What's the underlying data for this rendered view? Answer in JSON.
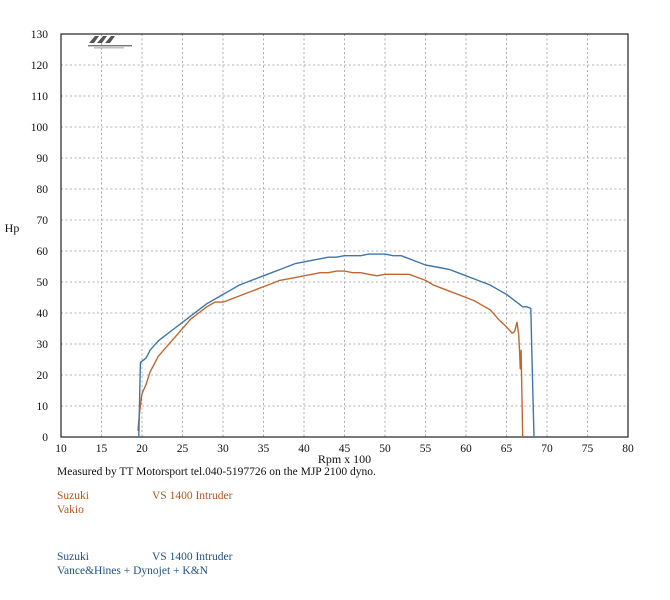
{
  "chart_data": {
    "type": "line",
    "xlabel": "Rpm x 100",
    "ylabel": "Hp",
    "xlim": [
      10,
      80
    ],
    "ylim": [
      0,
      130
    ],
    "x_ticks": [
      10,
      15,
      20,
      25,
      30,
      35,
      40,
      45,
      50,
      55,
      60,
      65,
      70,
      75,
      80
    ],
    "y_ticks": [
      0,
      10,
      20,
      30,
      40,
      50,
      60,
      70,
      80,
      90,
      100,
      110,
      120,
      130
    ],
    "grid": true,
    "series": [
      {
        "name": "Vakio",
        "color": "#c0672f",
        "points": [
          [
            19.5,
            2
          ],
          [
            19.7,
            8
          ],
          [
            20,
            14
          ],
          [
            20.5,
            17
          ],
          [
            21,
            21
          ],
          [
            22,
            26
          ],
          [
            23,
            29
          ],
          [
            24,
            32
          ],
          [
            25,
            35
          ],
          [
            26,
            38
          ],
          [
            27,
            40
          ],
          [
            28,
            42
          ],
          [
            29,
            43.5
          ],
          [
            30,
            43.5
          ],
          [
            31,
            44.5
          ],
          [
            32,
            45.5
          ],
          [
            33,
            46.5
          ],
          [
            34,
            47.5
          ],
          [
            35,
            48.5
          ],
          [
            36,
            49.5
          ],
          [
            37,
            50.5
          ],
          [
            38,
            51
          ],
          [
            39,
            51.5
          ],
          [
            40,
            52
          ],
          [
            41,
            52.5
          ],
          [
            42,
            53
          ],
          [
            43,
            53
          ],
          [
            44,
            53.5
          ],
          [
            45,
            53.5
          ],
          [
            46,
            53
          ],
          [
            47,
            53
          ],
          [
            48,
            52.5
          ],
          [
            49,
            52
          ],
          [
            50,
            52.5
          ],
          [
            51,
            52.5
          ],
          [
            52,
            52.5
          ],
          [
            53,
            52.5
          ],
          [
            54,
            51.5
          ],
          [
            55,
            50.5
          ],
          [
            56,
            49
          ],
          [
            57,
            48
          ],
          [
            58,
            47
          ],
          [
            59,
            46
          ],
          [
            60,
            45
          ],
          [
            61,
            44
          ],
          [
            62,
            42.5
          ],
          [
            63,
            41
          ],
          [
            64,
            38
          ],
          [
            65,
            35.5
          ],
          [
            65.7,
            33.5
          ],
          [
            66,
            34
          ],
          [
            66.3,
            37
          ],
          [
            66.5,
            33
          ],
          [
            66.6,
            28
          ],
          [
            66.7,
            22
          ],
          [
            66.8,
            28
          ],
          [
            67,
            0
          ]
        ]
      },
      {
        "name": "Vance&Hines + Dynojet + K&N",
        "color": "#3e77a8",
        "points": [
          [
            19.6,
            0
          ],
          [
            19.8,
            24
          ],
          [
            20.5,
            25.5
          ],
          [
            21,
            28
          ],
          [
            22,
            31
          ],
          [
            23,
            33
          ],
          [
            24,
            35
          ],
          [
            25,
            37
          ],
          [
            26,
            39
          ],
          [
            27,
            41
          ],
          [
            28,
            43
          ],
          [
            29,
            44.5
          ],
          [
            30,
            46
          ],
          [
            31,
            47.5
          ],
          [
            32,
            49
          ],
          [
            33,
            50
          ],
          [
            34,
            51
          ],
          [
            35,
            52
          ],
          [
            36,
            53
          ],
          [
            37,
            54
          ],
          [
            38,
            55
          ],
          [
            39,
            56
          ],
          [
            40,
            56.5
          ],
          [
            41,
            57
          ],
          [
            42,
            57.5
          ],
          [
            43,
            58
          ],
          [
            44,
            58
          ],
          [
            45,
            58.5
          ],
          [
            46,
            58.5
          ],
          [
            47,
            58.5
          ],
          [
            48,
            59
          ],
          [
            49,
            59
          ],
          [
            50,
            59
          ],
          [
            51,
            58.5
          ],
          [
            52,
            58.5
          ],
          [
            53,
            57.5
          ],
          [
            54,
            56.5
          ],
          [
            55,
            55.5
          ],
          [
            56,
            55
          ],
          [
            57,
            54.5
          ],
          [
            58,
            54
          ],
          [
            59,
            53
          ],
          [
            60,
            52
          ],
          [
            61,
            51
          ],
          [
            62,
            50
          ],
          [
            63,
            49
          ],
          [
            64,
            47.5
          ],
          [
            65,
            46
          ],
          [
            66,
            44
          ],
          [
            66.5,
            43
          ],
          [
            67,
            42
          ],
          [
            67.5,
            42
          ],
          [
            68,
            41.5
          ],
          [
            68.2,
            20
          ],
          [
            68.4,
            0
          ]
        ]
      }
    ]
  },
  "footer": {
    "measured_by": "Measured by TT Motorsport tel.040-5197726 on the MJP 2100 dyno.",
    "run1_brand": "Suzuki",
    "run1_model": "VS 1400 Intruder",
    "run1_config": "Vakio",
    "run2_brand": "Suzuki",
    "run2_model": "VS 1400 Intruder",
    "run2_config": "Vance&Hines + Dynojet + K&N"
  }
}
